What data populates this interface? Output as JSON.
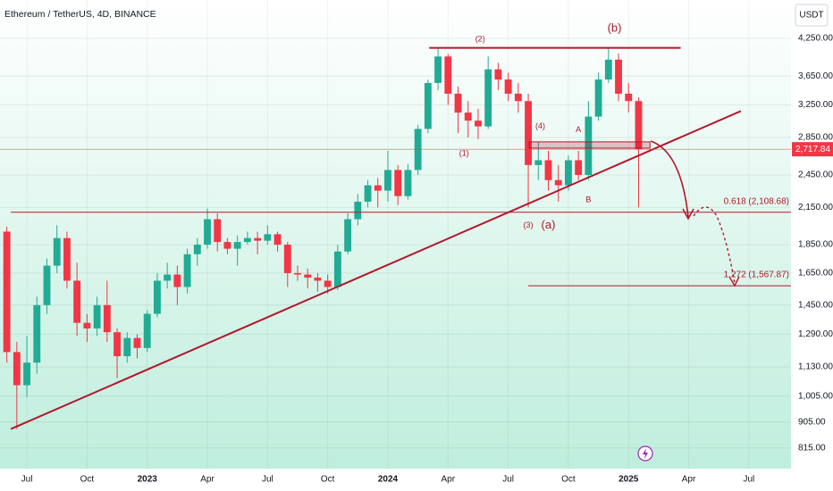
{
  "chart_data": {
    "type": "candlestick",
    "title": "Ethereum / TetherUS, 4D, BINANCE",
    "currency": "USDT",
    "log_scale": true,
    "grid": true,
    "up_color": "#22ab94",
    "down_color": "#f23645",
    "drawing_color": "#b2182b",
    "xlim": [
      -1.34,
      38.1
    ],
    "ylim": [
      750,
      4960
    ],
    "xticks": [
      {
        "value": 0,
        "label": "Jul"
      },
      {
        "value": 3,
        "label": "Oct"
      },
      {
        "value": 6,
        "label": "2023"
      },
      {
        "value": 9,
        "label": "Apr"
      },
      {
        "value": 12,
        "label": "Jul"
      },
      {
        "value": 15,
        "label": "Oct"
      },
      {
        "value": 18,
        "label": "2024"
      },
      {
        "value": 21,
        "label": "Apr"
      },
      {
        "value": 24,
        "label": "Jul"
      },
      {
        "value": 27,
        "label": "Oct"
      },
      {
        "value": 30,
        "label": "2025"
      },
      {
        "value": 33,
        "label": "Apr"
      },
      {
        "value": 36,
        "label": "Jul"
      }
    ],
    "yticks": [
      {
        "value": 815,
        "label": "815.00"
      },
      {
        "value": 905,
        "label": "905.00"
      },
      {
        "value": 1005,
        "label": "1,005.00"
      },
      {
        "value": 1130,
        "label": "1,130.00"
      },
      {
        "value": 1290,
        "label": "1,290.00"
      },
      {
        "value": 1450,
        "label": "1,450.00"
      },
      {
        "value": 1650,
        "label": "1,650.00"
      },
      {
        "value": 1850,
        "label": "1,850.00"
      },
      {
        "value": 2150,
        "label": "2,150.00"
      },
      {
        "value": 2450,
        "label": "2,450.00"
      },
      {
        "value": 2850,
        "label": "2,850.00"
      },
      {
        "value": 3250,
        "label": "3,250.00"
      },
      {
        "value": 3650,
        "label": "3,650.00"
      },
      {
        "value": 4250,
        "label": "4,250.00"
      }
    ],
    "x": [
      -1.0,
      -0.5,
      0.0,
      0.5,
      1.0,
      1.5,
      2.0,
      2.5,
      3.0,
      3.5,
      4.0,
      4.5,
      5.0,
      5.5,
      6.0,
      6.5,
      7.0,
      7.5,
      8.0,
      8.5,
      9.0,
      9.5,
      10.0,
      10.5,
      11.0,
      11.5,
      12.0,
      12.5,
      13.0,
      13.5,
      14.0,
      14.5,
      15.0,
      15.5,
      16.0,
      16.5,
      17.0,
      17.5,
      18.0,
      18.5,
      19.0,
      19.5,
      20.0,
      20.5,
      21.0,
      21.5,
      22.0,
      22.5,
      23.0,
      23.5,
      24.0,
      24.5,
      25.0,
      25.5,
      26.0,
      26.5,
      27.0,
      27.5,
      28.0,
      28.5,
      29.0,
      29.5,
      30.0,
      30.5
    ],
    "open": [
      1950,
      1200,
      1050,
      1150,
      1450,
      1700,
      1900,
      1600,
      1350,
      1320,
      1450,
      1300,
      1180,
      1270,
      1220,
      1400,
      1600,
      1640,
      1560,
      1780,
      1850,
      2050,
      1870,
      1820,
      1870,
      1900,
      1880,
      1930,
      1850,
      1650,
      1640,
      1620,
      1600,
      1560,
      1800,
      2050,
      2200,
      2350,
      2300,
      2500,
      2250,
      2500,
      2950,
      3550,
      3950,
      3400,
      3150,
      3050,
      2980,
      3750,
      3600,
      3400,
      3300,
      2550,
      2600,
      2400,
      2350,
      2600,
      2450,
      3100,
      3600,
      3900,
      3400,
      3300
    ],
    "high": [
      1990,
      1250,
      1280,
      1500,
      1750,
      2000,
      1950,
      1720,
      1400,
      1500,
      1600,
      1320,
      1300,
      1290,
      1420,
      1650,
      1720,
      1700,
      1820,
      1900,
      2140,
      2100,
      1900,
      1920,
      1950,
      1950,
      2000,
      1950,
      1870,
      1700,
      1680,
      1650,
      1640,
      1850,
      2100,
      2270,
      2400,
      2420,
      2700,
      2550,
      2560,
      3000,
      3600,
      4090,
      3990,
      3500,
      3300,
      3200,
      3950,
      3850,
      3700,
      3550,
      3400,
      2800,
      2700,
      2550,
      2650,
      2700,
      3300,
      3700,
      4100,
      4000,
      3550,
      3350
    ],
    "low": [
      1150,
      880,
      1000,
      1100,
      1400,
      1650,
      1550,
      1280,
      1250,
      1280,
      1250,
      1080,
      1150,
      1170,
      1200,
      1380,
      1550,
      1450,
      1520,
      1700,
      1820,
      1800,
      1780,
      1700,
      1850,
      1780,
      1850,
      1800,
      1560,
      1600,
      1550,
      1530,
      1520,
      1540,
      1780,
      2000,
      2150,
      2150,
      2200,
      2170,
      2220,
      2450,
      2900,
      3450,
      3250,
      2900,
      2850,
      2830,
      2950,
      3450,
      3300,
      3150,
      2150,
      2400,
      2300,
      2200,
      2300,
      2400,
      2400,
      3050,
      3550,
      3300,
      3150,
      2150
    ],
    "close": [
      1200,
      1050,
      1150,
      1450,
      1700,
      1900,
      1600,
      1350,
      1320,
      1450,
      1300,
      1180,
      1270,
      1220,
      1400,
      1600,
      1640,
      1560,
      1780,
      1850,
      2050,
      1870,
      1820,
      1870,
      1900,
      1880,
      1930,
      1850,
      1650,
      1640,
      1620,
      1600,
      1560,
      1800,
      2050,
      2200,
      2350,
      2300,
      2500,
      2250,
      2500,
      2950,
      3550,
      3950,
      3400,
      3150,
      3050,
      2980,
      3750,
      3600,
      3400,
      3300,
      2550,
      2600,
      2400,
      2350,
      2600,
      2450,
      3100,
      3600,
      3900,
      3400,
      3300,
      2717.84
    ],
    "last_price_label": "2,717.84",
    "levels": [
      {
        "value": 2108.68,
        "label": "0.618 (2,108.68)",
        "x": [
          -0.8,
          38.1
        ]
      },
      {
        "value": 1567.87,
        "label": "1.272 (1,567.87)",
        "x": [
          25.0,
          38.1
        ]
      }
    ],
    "lines": [
      {
        "x": [
          20.06,
          32.6
        ],
        "y": [
          4090,
          4090
        ]
      },
      {
        "x": [
          -0.8,
          35.6
        ],
        "y": [
          880,
          3170
        ]
      }
    ],
    "zone": {
      "x": [
        25.05,
        31.07
      ],
      "y": [
        2730,
        2800
      ]
    },
    "annotations": [
      {
        "text": "(2)",
        "x": 22.6,
        "y": 4230
      },
      {
        "text": "(b)",
        "x": 29.3,
        "y": 4420
      },
      {
        "text": "(1)",
        "x": 21.8,
        "y": 2670
      },
      {
        "text": "(4)",
        "x": 25.6,
        "y": 2980
      },
      {
        "text": "A",
        "x": 27.5,
        "y": 2935
      },
      {
        "text": "B",
        "x": 28.0,
        "y": 2215
      },
      {
        "text": "(3)",
        "x": 25.0,
        "y": 2000
      },
      {
        "text": "(a)",
        "x": 26.0,
        "y": 2000
      }
    ]
  }
}
